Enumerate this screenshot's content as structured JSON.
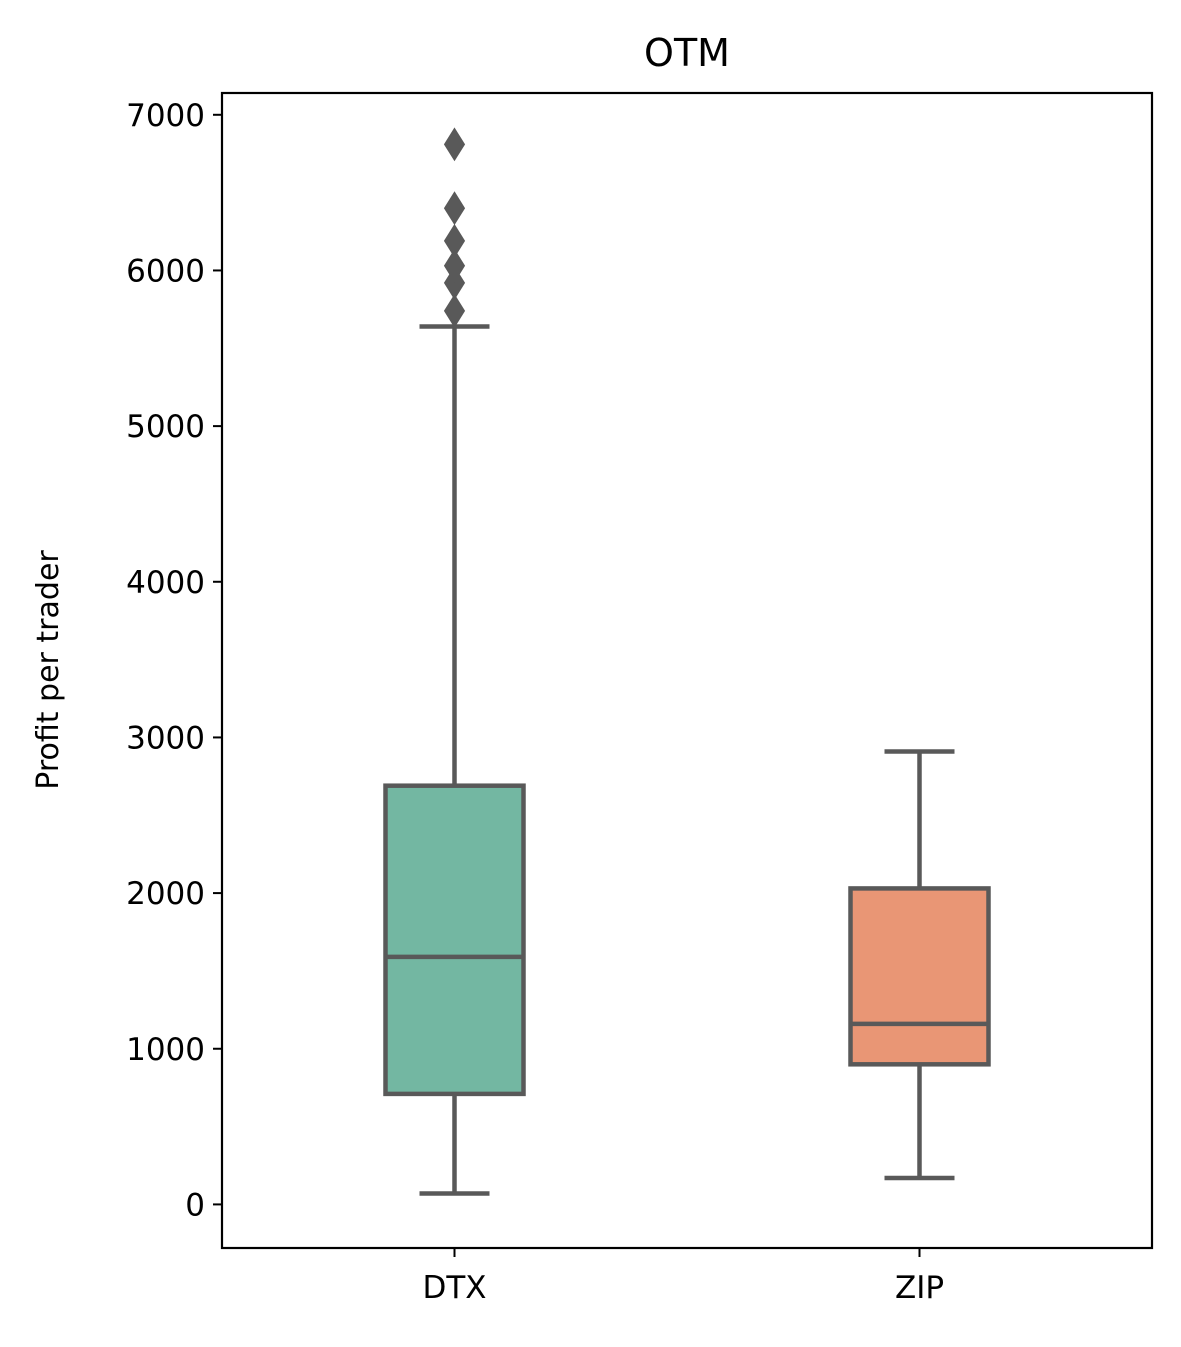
{
  "chart_data": {
    "type": "box",
    "title": "OTM",
    "xlabel": "",
    "ylabel": "Profit per trader",
    "ylim": [
      -280,
      7140
    ],
    "yticks": [
      0,
      1000,
      2000,
      3000,
      4000,
      5000,
      6000,
      7000
    ],
    "grid": false,
    "categories": [
      "DTX",
      "ZIP"
    ],
    "boxes": [
      {
        "category": "DTX",
        "whisker_low": 70,
        "q1": 710,
        "median": 1590,
        "q3": 2690,
        "whisker_high": 5640,
        "outliers": [
          5740,
          5920,
          6030,
          6190,
          6400,
          6810
        ],
        "color": "#73b7a2"
      },
      {
        "category": "ZIP",
        "whisker_low": 170,
        "q1": 900,
        "median": 1160,
        "q3": 2030,
        "whisker_high": 2910,
        "outliers": [],
        "color": "#e99675"
      }
    ],
    "line_color": "#595959"
  }
}
